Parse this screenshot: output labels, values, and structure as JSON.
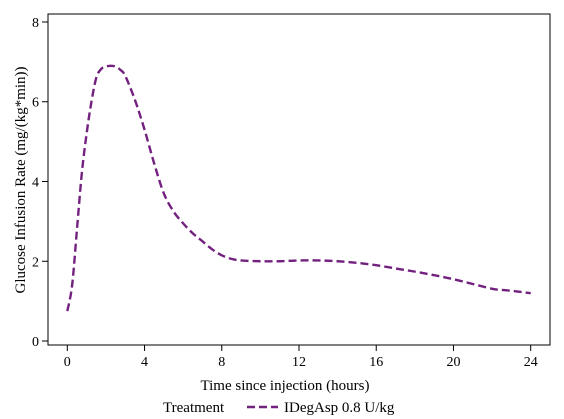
{
  "chart_data": {
    "type": "line",
    "title": "",
    "xlabel": "Time since injection (hours)",
    "ylabel": "Glucose Infusion Rate (mg/(kg*min))",
    "xlim": [
      -1,
      25
    ],
    "ylim": [
      -0.1,
      8.2
    ],
    "xticks": [
      0,
      4,
      8,
      12,
      16,
      20,
      24
    ],
    "yticks": [
      0,
      2,
      4,
      6,
      8
    ],
    "grid": false,
    "legend": {
      "position": "bottom",
      "title": "Treatment"
    },
    "series": [
      {
        "name": "IDegAsp 0.8 U/kg",
        "color": "#73217f",
        "dash": "dashed",
        "x": [
          0,
          0.25,
          0.5,
          0.75,
          1,
          1.25,
          1.5,
          1.75,
          2,
          2.25,
          2.5,
          2.75,
          3,
          3.5,
          4,
          4.5,
          5,
          5.5,
          6,
          6.5,
          7,
          7.5,
          8,
          8.5,
          9,
          10,
          11,
          12,
          13,
          14,
          15,
          16,
          17,
          18,
          19,
          20,
          21,
          22,
          22.5,
          23,
          23.5,
          24
        ],
        "y": [
          0.75,
          1.4,
          2.8,
          4.2,
          5.2,
          6.0,
          6.6,
          6.82,
          6.88,
          6.9,
          6.88,
          6.8,
          6.65,
          6.05,
          5.3,
          4.45,
          3.7,
          3.25,
          2.95,
          2.7,
          2.5,
          2.3,
          2.15,
          2.06,
          2.02,
          2.0,
          2.0,
          2.02,
          2.02,
          2.0,
          1.96,
          1.9,
          1.82,
          1.74,
          1.65,
          1.55,
          1.43,
          1.31,
          1.28,
          1.26,
          1.23,
          1.2
        ]
      }
    ]
  }
}
